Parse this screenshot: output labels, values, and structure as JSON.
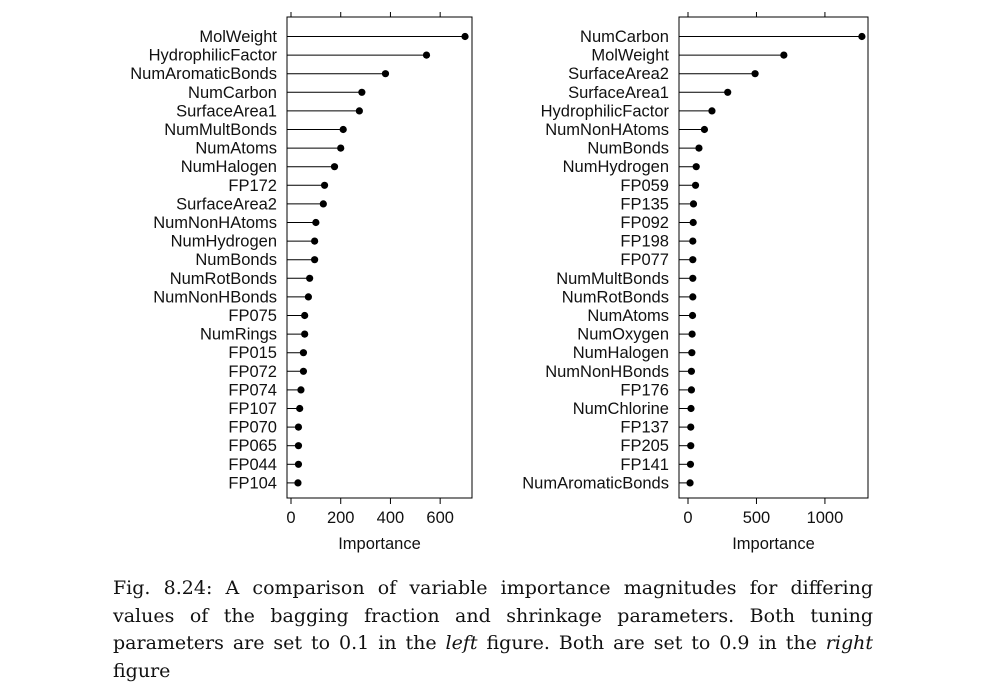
{
  "chart_data": [
    {
      "type": "dot",
      "xlabel": "Importance",
      "xlim": [
        0,
        720
      ],
      "xticks": [
        0,
        200,
        400,
        600
      ],
      "grid": false,
      "categories": [
        "MolWeight",
        "HydrophilicFactor",
        "NumAromaticBonds",
        "NumCarbon",
        "SurfaceArea1",
        "NumMultBonds",
        "NumAtoms",
        "NumHalogen",
        "FP172",
        "SurfaceArea2",
        "NumNonHAtoms",
        "NumHydrogen",
        "NumBonds",
        "NumRotBonds",
        "NumNonHBonds",
        "FP075",
        "NumRings",
        "FP015",
        "FP072",
        "FP074",
        "FP107",
        "FP070",
        "FP065",
        "FP044",
        "FP104"
      ],
      "values": [
        700,
        545,
        380,
        285,
        275,
        210,
        200,
        175,
        135,
        130,
        100,
        95,
        95,
        75,
        70,
        55,
        55,
        50,
        50,
        40,
        35,
        30,
        30,
        30,
        28
      ]
    },
    {
      "type": "dot",
      "xlabel": "Importance",
      "xlim": [
        0,
        1300
      ],
      "xticks": [
        0,
        500,
        1000
      ],
      "grid": false,
      "categories": [
        "NumCarbon",
        "MolWeight",
        "SurfaceArea2",
        "SurfaceArea1",
        "HydrophilicFactor",
        "NumNonHAtoms",
        "NumBonds",
        "NumHydrogen",
        "FP059",
        "FP135",
        "FP092",
        "FP198",
        "FP077",
        "NumMultBonds",
        "NumRotBonds",
        "NumAtoms",
        "NumOxygen",
        "NumHalogen",
        "NumNonHBonds",
        "FP176",
        "NumChlorine",
        "FP137",
        "FP205",
        "FP141",
        "NumAromaticBonds"
      ],
      "values": [
        1270,
        700,
        490,
        290,
        175,
        120,
        80,
        60,
        55,
        40,
        38,
        35,
        35,
        35,
        35,
        33,
        30,
        28,
        25,
        25,
        22,
        20,
        20,
        18,
        15
      ]
    }
  ],
  "caption": {
    "part1": "Fig. 8.24: A comparison of variable importance magnitudes for differing values of the bagging fraction and shrinkage parameters. Both tuning parameters are set to 0.1 in the ",
    "left_word": "left",
    "part2": " figure. Both are set to 0.9 in the ",
    "right_word": "right",
    "part3": " figure"
  }
}
